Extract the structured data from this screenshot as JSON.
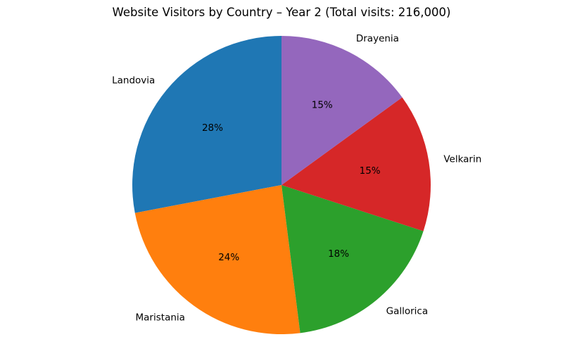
{
  "chart_data": {
    "type": "pie",
    "title": "Website Visitors by Country – Year 2 (Total visits: 216,000)",
    "categories": [
      "Landovia",
      "Maristania",
      "Gallorica",
      "Velkarin",
      "Drayenia"
    ],
    "values": [
      28,
      24,
      18,
      15,
      15
    ],
    "value_labels": [
      "28%",
      "24%",
      "18%",
      "15%",
      "15%"
    ],
    "colors": [
      "#1f77b4",
      "#ff7f0e",
      "#2ca02c",
      "#d62728",
      "#9467bd"
    ],
    "start_angle_deg": 90,
    "direction": "counterclockwise",
    "legend": "none"
  }
}
